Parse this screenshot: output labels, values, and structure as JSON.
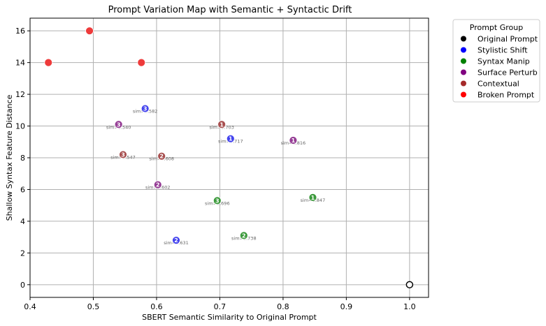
{
  "chart_data": {
    "type": "scatter",
    "title": "Prompt Variation Map with Semantic + Syntactic Drift",
    "xlabel": "SBERT Semantic Similarity to Original Prompt",
    "ylabel": "Shallow Syntax Feature Distance",
    "xlim": [
      0.4,
      1.03
    ],
    "ylim": [
      -0.8,
      16.8
    ],
    "x_ticks": [
      0.4,
      0.5,
      0.6,
      0.7,
      0.8,
      0.9,
      1.0
    ],
    "x_tick_labels": [
      "0.4",
      "0.5",
      "0.6",
      "0.7",
      "0.8",
      "0.9",
      "1.0"
    ],
    "y_ticks": [
      0,
      2,
      4,
      6,
      8,
      10,
      12,
      14,
      16
    ],
    "y_tick_labels": [
      "0",
      "2",
      "4",
      "6",
      "8",
      "10",
      "12",
      "14",
      "16"
    ],
    "grid": true,
    "legend": {
      "title": "Prompt Group",
      "placement": "outside-top-right",
      "entries": [
        {
          "name": "Original Prompt",
          "color": "#000000"
        },
        {
          "name": "Stylistic Shift",
          "color": "#0000ff"
        },
        {
          "name": "Syntax Manip",
          "color": "#008000"
        },
        {
          "name": "Surface Perturb",
          "color": "#800080"
        },
        {
          "name": "Contextual",
          "color": "#a52a2a"
        },
        {
          "name": "Broken Prompt",
          "color": "#ff0000"
        }
      ]
    },
    "points": [
      {
        "group": "Original Prompt",
        "x": 1.0,
        "y": 0.0,
        "color": "#000000",
        "num": "",
        "label": "",
        "hollow": true
      },
      {
        "group": "Stylistic Shift",
        "x": 0.582,
        "y": 11.1,
        "color": "#4444ee",
        "num": "3",
        "label": "sim=0.582"
      },
      {
        "group": "Stylistic Shift",
        "x": 0.717,
        "y": 9.2,
        "color": "#4444ee",
        "num": "1",
        "label": "sim=0.717"
      },
      {
        "group": "Stylistic Shift",
        "x": 0.631,
        "y": 2.8,
        "color": "#4444ee",
        "num": "2",
        "label": "sim=0.631"
      },
      {
        "group": "Syntax Manip",
        "x": 0.847,
        "y": 5.5,
        "color": "#3c9a3c",
        "num": "1",
        "label": "sim=0.847"
      },
      {
        "group": "Syntax Manip",
        "x": 0.738,
        "y": 3.1,
        "color": "#3c9a3c",
        "num": "2",
        "label": "sim=0.738"
      },
      {
        "group": "Syntax Manip",
        "x": 0.696,
        "y": 5.3,
        "color": "#3c9a3c",
        "num": "3",
        "label": "sim=0.696"
      },
      {
        "group": "Surface Perturb",
        "x": 0.816,
        "y": 9.1,
        "color": "#953d95",
        "num": "1",
        "label": "sim=0.816"
      },
      {
        "group": "Surface Perturb",
        "x": 0.602,
        "y": 6.3,
        "color": "#953d95",
        "num": "2",
        "label": "sim=0.602"
      },
      {
        "group": "Surface Perturb",
        "x": 0.54,
        "y": 10.1,
        "color": "#953d95",
        "num": "3",
        "label": "sim=0.540"
      },
      {
        "group": "Contextual",
        "x": 0.703,
        "y": 10.1,
        "color": "#a85050",
        "num": "1",
        "label": "sim=0.703"
      },
      {
        "group": "Contextual",
        "x": 0.608,
        "y": 8.1,
        "color": "#a85050",
        "num": "2",
        "label": "sim=0.608"
      },
      {
        "group": "Contextual",
        "x": 0.547,
        "y": 8.2,
        "color": "#a85050",
        "num": "3",
        "label": "sim=0.547"
      },
      {
        "group": "Broken Prompt",
        "x": 0.429,
        "y": 14.0,
        "color": "#ee3b3b",
        "num": "",
        "label": ""
      },
      {
        "group": "Broken Prompt",
        "x": 0.494,
        "y": 16.0,
        "color": "#ee3b3b",
        "num": "",
        "label": ""
      },
      {
        "group": "Broken Prompt",
        "x": 0.576,
        "y": 14.0,
        "color": "#ee3b3b",
        "num": "",
        "label": ""
      }
    ]
  }
}
